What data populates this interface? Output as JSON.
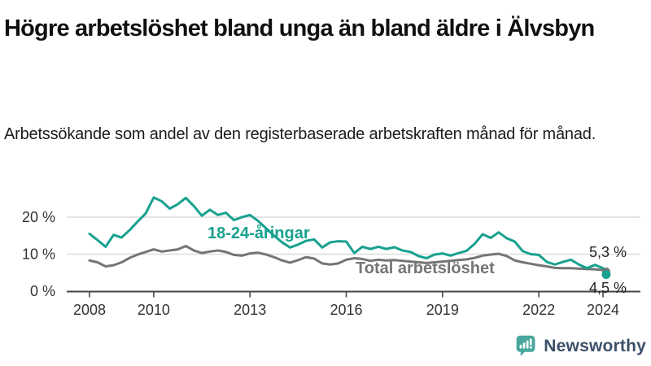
{
  "header": {
    "title": "Högre arbetslöshet bland unga än bland äldre i Älvsbyn",
    "subtitle": "Arbetssökande som andel av den registerbaserade arbetskraften månad för månad."
  },
  "chart_data": {
    "type": "line",
    "x_unit": "decimal_year",
    "xlim": [
      2007.3,
      2025.2
    ],
    "ylim": [
      0,
      28
    ],
    "grid": "horizontal gridlines at 10 and 20",
    "legend": "inline labels on lines, value labels at line ends",
    "yticks": [
      {
        "v": 0,
        "label": "0 %"
      },
      {
        "v": 10,
        "label": "10 %"
      },
      {
        "v": 20,
        "label": "20 %"
      }
    ],
    "xticks": [
      {
        "v": 2008,
        "label": "2008"
      },
      {
        "v": 2010,
        "label": "2010"
      },
      {
        "v": 2013,
        "label": "2013"
      },
      {
        "v": 2016,
        "label": "2016"
      },
      {
        "v": 2019,
        "label": "2019"
      },
      {
        "v": 2022,
        "label": "2022"
      },
      {
        "v": 2024,
        "label": "2024"
      }
    ],
    "x": [
      2008,
      2008.25,
      2008.5,
      2008.75,
      2009,
      2009.25,
      2009.5,
      2009.75,
      2010,
      2010.25,
      2010.5,
      2010.75,
      2011,
      2011.25,
      2011.5,
      2011.75,
      2012,
      2012.25,
      2012.5,
      2012.75,
      2013,
      2013.25,
      2013.5,
      2013.75,
      2014,
      2014.25,
      2014.5,
      2014.75,
      2015,
      2015.25,
      2015.5,
      2015.75,
      2016,
      2016.25,
      2016.5,
      2016.75,
      2017,
      2017.25,
      2017.5,
      2017.75,
      2018,
      2018.25,
      2018.5,
      2018.75,
      2019,
      2019.25,
      2019.5,
      2019.75,
      2020,
      2020.25,
      2020.5,
      2020.75,
      2021,
      2021.25,
      2021.5,
      2021.75,
      2022,
      2022.25,
      2022.5,
      2022.75,
      2023,
      2023.25,
      2023.5,
      2023.75,
      2024,
      2024.1
    ],
    "series": [
      {
        "id": "total",
        "name": "Total arbetslöshet",
        "color": "#757575",
        "end_label": "5,3 %",
        "end_value": 5.3,
        "values": [
          8.3,
          7.8,
          6.7,
          7.0,
          7.8,
          9.0,
          9.9,
          10.6,
          11.3,
          10.7,
          11.0,
          11.3,
          12.2,
          11.0,
          10.3,
          10.7,
          11.0,
          10.6,
          9.8,
          9.6,
          10.2,
          10.4,
          9.9,
          9.2,
          8.3,
          7.7,
          8.4,
          9.2,
          8.8,
          7.5,
          7.2,
          7.5,
          8.5,
          8.9,
          8.7,
          8.2,
          8.5,
          8.3,
          8.4,
          8.2,
          8.0,
          7.8,
          7.6,
          7.8,
          8.0,
          8.2,
          8.4,
          8.6,
          9.0,
          9.6,
          9.9,
          10.1,
          9.5,
          8.3,
          7.8,
          7.4,
          7.0,
          6.7,
          6.3,
          6.2,
          6.2,
          6.1,
          6.0,
          5.9,
          5.7,
          5.3
        ]
      },
      {
        "id": "young",
        "name": "18-24-åringar",
        "color": "#18a18f",
        "end_label": "4,5 %",
        "end_value": 4.5,
        "values": [
          15.5,
          13.8,
          12.0,
          15.2,
          14.5,
          16.5,
          18.8,
          21.0,
          25.3,
          24.3,
          22.3,
          23.5,
          25.2,
          23.0,
          20.4,
          22.0,
          20.6,
          21.2,
          19.2,
          20.0,
          20.6,
          19.0,
          17.0,
          15.0,
          13.2,
          11.8,
          12.6,
          13.6,
          14.0,
          11.8,
          13.2,
          13.5,
          13.4,
          10.3,
          12.0,
          11.4,
          12.0,
          11.4,
          11.9,
          11.0,
          10.6,
          9.5,
          8.9,
          9.9,
          10.2,
          9.6,
          10.3,
          10.9,
          12.8,
          15.4,
          14.4,
          15.9,
          14.3,
          13.4,
          10.8,
          10.0,
          9.8,
          7.9,
          7.2,
          7.9,
          8.5,
          7.2,
          6.2,
          7.1,
          6.2,
          4.5
        ]
      }
    ]
  },
  "logo": {
    "brand": "Newsworthy",
    "icon": "bar-chart-speech-bubble-icon",
    "icon_color": "#48a79d",
    "text_color": "#3c5068"
  }
}
